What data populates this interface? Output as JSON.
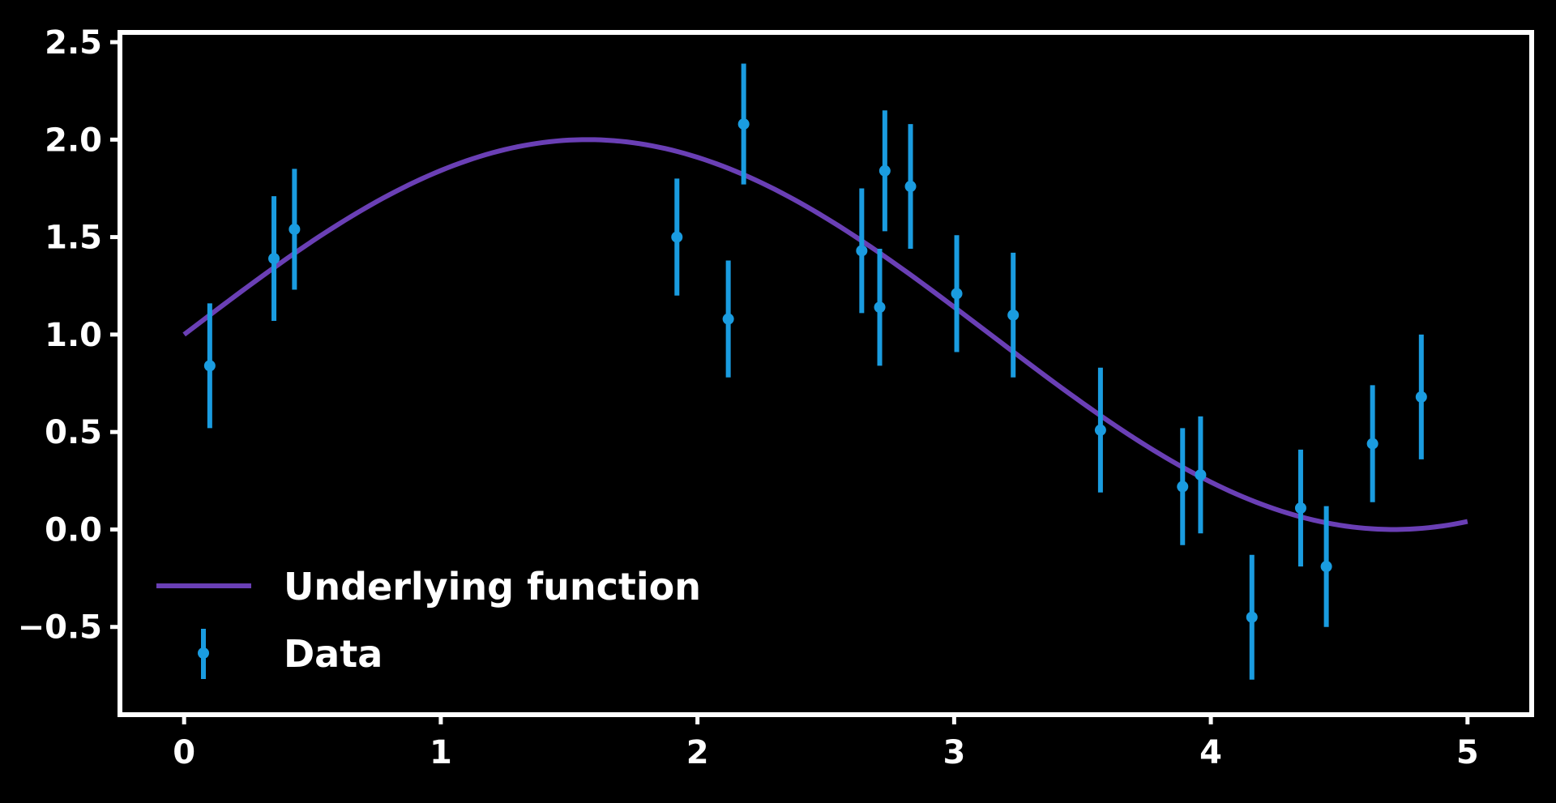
{
  "chart_data": {
    "type": "scatter",
    "title": "",
    "xlabel": "",
    "ylabel": "",
    "xlim": [
      -0.25,
      5.25
    ],
    "ylim": [
      -0.95,
      2.55
    ],
    "xticks": [
      0,
      1,
      2,
      3,
      4,
      5
    ],
    "xtick_labels": [
      "0",
      "1",
      "2",
      "3",
      "4",
      "5"
    ],
    "yticks": [
      -0.5,
      0.0,
      0.5,
      1.0,
      1.5,
      2.0,
      2.5
    ],
    "ytick_labels": [
      "−0.5",
      "0.0",
      "0.5",
      "1.0",
      "1.5",
      "2.0",
      "2.5"
    ],
    "grid": false,
    "legend_position": "lower-left",
    "colors": {
      "background": "#000000",
      "axes": "#ffffff",
      "function_line": "#6a3fb5",
      "data_points": "#1a9ce0"
    },
    "line_series": {
      "name": "Underlying function",
      "function": "1 + sin(x)",
      "x_range": [
        0,
        5
      ]
    },
    "data_series": {
      "name": "Data",
      "points": [
        {
          "x": 0.1,
          "y": 0.84,
          "err": 0.32
        },
        {
          "x": 0.35,
          "y": 1.39,
          "err": 0.32
        },
        {
          "x": 0.43,
          "y": 1.54,
          "err": 0.31
        },
        {
          "x": 1.92,
          "y": 1.5,
          "err": 0.3
        },
        {
          "x": 2.12,
          "y": 1.08,
          "err": 0.3
        },
        {
          "x": 2.18,
          "y": 2.08,
          "err": 0.31
        },
        {
          "x": 2.64,
          "y": 1.43,
          "err": 0.32
        },
        {
          "x": 2.71,
          "y": 1.14,
          "err": 0.3
        },
        {
          "x": 2.73,
          "y": 1.84,
          "err": 0.31
        },
        {
          "x": 2.83,
          "y": 1.76,
          "err": 0.32
        },
        {
          "x": 3.01,
          "y": 1.21,
          "err": 0.3
        },
        {
          "x": 3.23,
          "y": 1.1,
          "err": 0.32
        },
        {
          "x": 3.57,
          "y": 0.51,
          "err": 0.32
        },
        {
          "x": 3.89,
          "y": 0.22,
          "err": 0.3
        },
        {
          "x": 3.96,
          "y": 0.28,
          "err": 0.3
        },
        {
          "x": 4.16,
          "y": -0.45,
          "err": 0.32
        },
        {
          "x": 4.35,
          "y": 0.11,
          "err": 0.3
        },
        {
          "x": 4.45,
          "y": -0.19,
          "err": 0.31
        },
        {
          "x": 4.63,
          "y": 0.44,
          "err": 0.3
        },
        {
          "x": 4.82,
          "y": 0.68,
          "err": 0.32
        }
      ]
    }
  }
}
